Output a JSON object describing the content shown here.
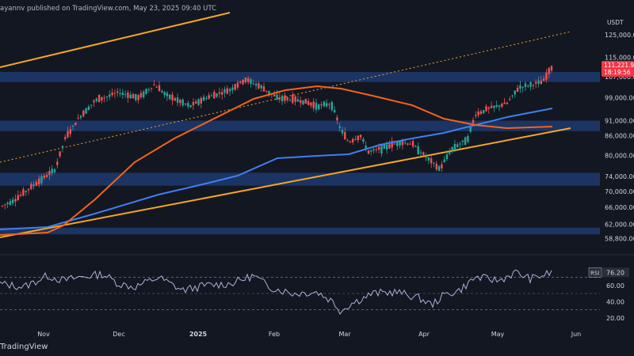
{
  "header": {
    "publisher": "ayannv published on TradingView.com, May 23, 2025 09:40 UTC"
  },
  "footer": {
    "brand": "TradingView"
  },
  "chart_data": {
    "type": "candlestick",
    "currency": "USDT",
    "y_scale": "log",
    "ylim": [
      56000,
      135000
    ],
    "y_ticks": [
      "125,000.00",
      "115,000.00",
      "107,000.00",
      "99,000.00",
      "91,000.00",
      "86,000.00",
      "80,000.00",
      "74,000.00",
      "70,000.00",
      "66,000.00",
      "62,000.00",
      "58,800.00"
    ],
    "x_ticks": [
      "Nov",
      "Dec",
      "2025",
      "Feb",
      "Mar",
      "Apr",
      "May",
      "Jun"
    ],
    "last_price": {
      "value": "111,221.9",
      "countdown": "18:19:56"
    },
    "rsi": {
      "label": "RSI",
      "value": "76.20",
      "ticks": [
        "60.00",
        "40.00",
        "20.00"
      ],
      "upper": 70,
      "lower": 30
    },
    "support_resistance_zones": [
      {
        "low": 105000,
        "high": 109000
      },
      {
        "low": 87500,
        "high": 91000
      },
      {
        "low": 71500,
        "high": 75000
      },
      {
        "low": 59700,
        "high": 61200
      }
    ],
    "colors": {
      "background": "#131722",
      "up": "#26a69a",
      "down": "#ef5350",
      "ma_orange": "#f2641b",
      "ma_blue": "#3d7ff0",
      "trendline": "#f5a623",
      "zone": "#1e3a6e",
      "price_label": "#f23645",
      "rsi_line": "#aab2d6"
    }
  }
}
